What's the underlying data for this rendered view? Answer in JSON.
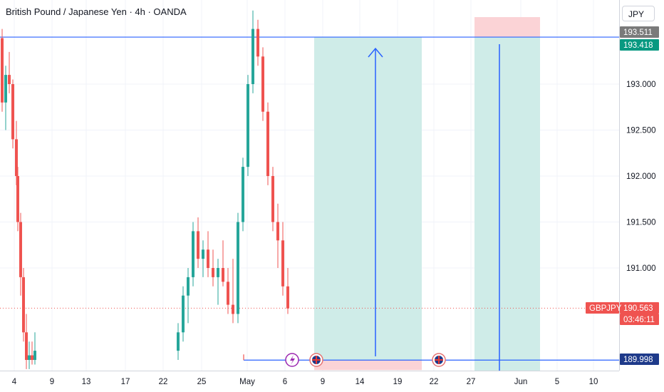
{
  "header": {
    "title": "British Pound / Japanese Yen · 4h · OANDA",
    "currency_button": "JPY"
  },
  "colors": {
    "up": "#26a69a",
    "down": "#ef5350",
    "line": "#2962ff",
    "profit_zone": "#cfece8",
    "loss_zone": "#fbd3d6",
    "grid": "#f0f3fa"
  },
  "chart_data": {
    "type": "candlestick",
    "symbol": "GBPJPY",
    "y_axis": {
      "ticks": [
        "193.000",
        "192.500",
        "192.000",
        "191.500",
        "191.000"
      ],
      "tick_values": [
        193.0,
        192.5,
        192.0,
        191.5,
        191.0
      ]
    },
    "x_axis": {
      "ticks": [
        "4",
        "9",
        "13",
        "17",
        "22",
        "25",
        "May",
        "6",
        "9",
        "14",
        "19",
        "22",
        "27",
        "Jun",
        "5",
        "10"
      ]
    },
    "price_tags": {
      "upper_level": "193.511",
      "target_level": "193.418",
      "symbol_label": "GBPJPY",
      "last_price": "190.563",
      "countdown": "03:46:11",
      "lower_level": "189.998"
    },
    "horizontal_lines": [
      193.511,
      189.998
    ],
    "candles": [
      [
        193.5,
        193.6,
        192.7,
        192.8
      ],
      [
        192.8,
        193.2,
        192.5,
        193.1
      ],
      [
        193.1,
        193.35,
        192.9,
        193.0
      ],
      [
        193.0,
        193.05,
        192.3,
        192.4
      ],
      [
        192.4,
        192.6,
        191.9,
        192.0
      ],
      [
        192.0,
        192.1,
        191.4,
        191.5
      ],
      [
        191.5,
        191.6,
        190.7,
        190.9
      ],
      [
        190.9,
        191.0,
        190.2,
        190.3
      ],
      [
        190.3,
        190.5,
        189.9,
        190.0
      ],
      [
        190.0,
        190.2,
        189.9,
        190.05
      ],
      [
        190.05,
        190.2,
        189.95,
        190.0
      ],
      [
        190.0,
        190.3,
        189.95,
        190.1
      ],
      [
        190.1,
        190.4,
        190.0,
        190.3
      ],
      [
        190.3,
        190.8,
        190.2,
        190.7
      ],
      [
        190.7,
        191.0,
        190.4,
        190.9
      ],
      [
        190.9,
        191.5,
        190.8,
        191.4
      ],
      [
        191.4,
        191.55,
        191.0,
        191.1
      ],
      [
        191.1,
        191.3,
        190.9,
        191.2
      ],
      [
        191.2,
        191.4,
        190.9,
        191.0
      ],
      [
        191.0,
        191.2,
        190.8,
        190.9
      ],
      [
        190.9,
        191.1,
        190.6,
        191.0
      ],
      [
        191.0,
        191.3,
        190.8,
        190.85
      ],
      [
        190.85,
        191.0,
        190.5,
        190.6
      ],
      [
        190.6,
        191.1,
        190.4,
        190.5
      ],
      [
        190.5,
        191.6,
        190.4,
        191.5
      ],
      [
        191.5,
        192.2,
        191.4,
        192.1
      ],
      [
        192.1,
        193.1,
        192.0,
        193.0
      ],
      [
        193.0,
        193.8,
        192.9,
        193.6
      ],
      [
        193.6,
        193.7,
        193.2,
        193.3
      ],
      [
        193.3,
        193.4,
        192.6,
        192.7
      ],
      [
        192.7,
        192.8,
        191.9,
        192.0
      ],
      [
        192.0,
        192.1,
        191.4,
        191.5
      ],
      [
        191.5,
        191.7,
        191.0,
        191.3
      ],
      [
        191.3,
        191.5,
        190.7,
        190.8
      ],
      [
        190.8,
        191.0,
        190.5,
        190.56
      ]
    ],
    "projections": [
      {
        "type": "long_position",
        "direction": "up",
        "target": 193.418,
        "stop": 189.998
      },
      {
        "type": "long_position",
        "direction": "down",
        "target": 193.418,
        "stop": 193.7
      }
    ],
    "event_markers": [
      "lightning-icon",
      "uk-flag-icon",
      "uk-flag-icon"
    ]
  }
}
